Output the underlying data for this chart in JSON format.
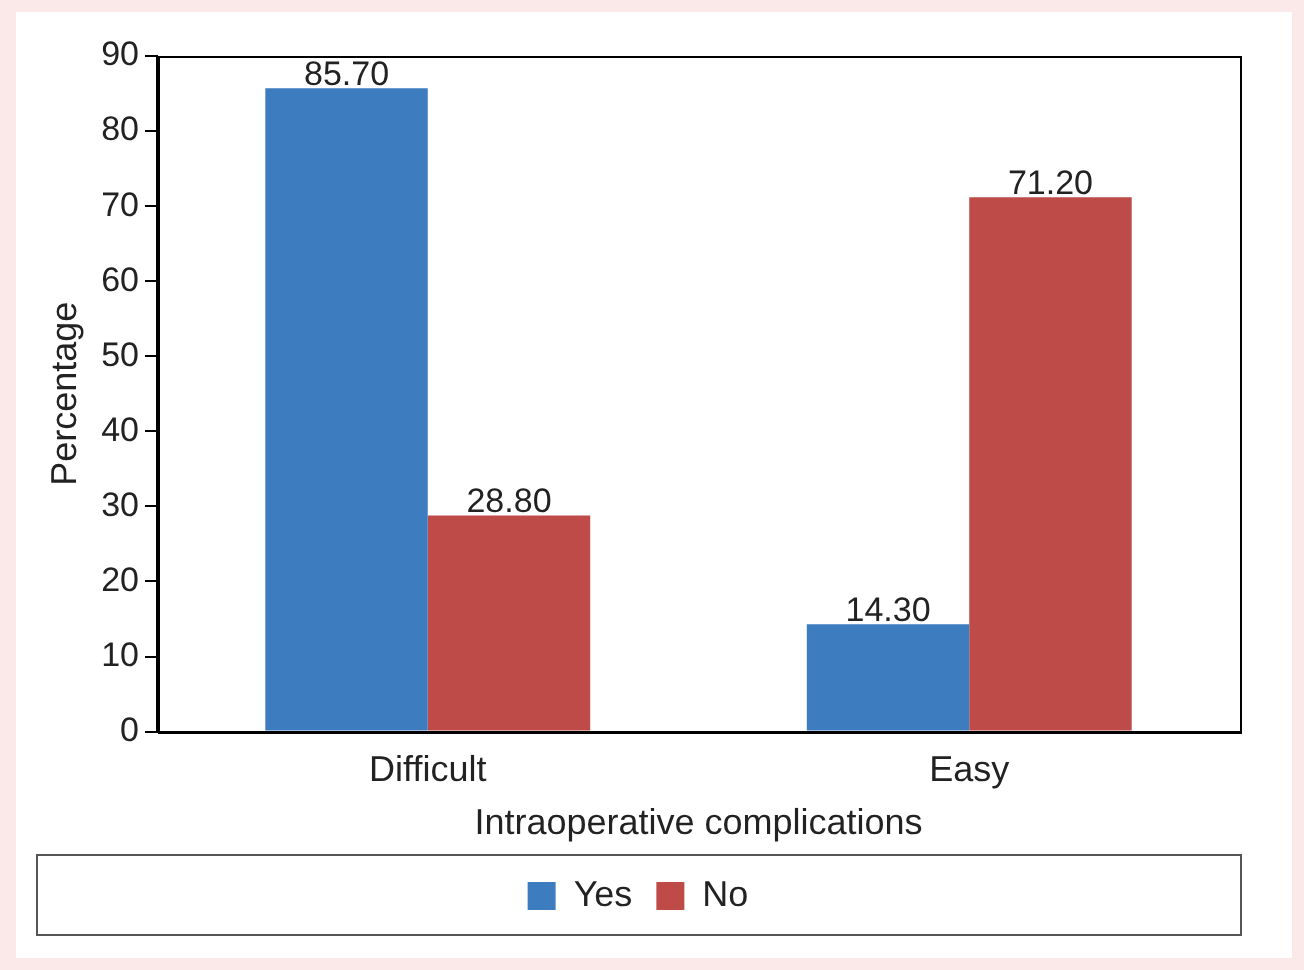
{
  "chart_data": {
    "type": "bar",
    "xlabel": "Intraoperative complications",
    "ylabel": "Percentage",
    "categories": [
      "Difficult",
      "Easy"
    ],
    "series": [
      {
        "name": "Yes",
        "color": "#3e7cc0",
        "values": [
          85.7,
          14.3
        ],
        "value_labels": [
          "85.70",
          "14.30"
        ]
      },
      {
        "name": "No",
        "color": "#be4b48",
        "values": [
          28.8,
          71.2
        ],
        "value_labels": [
          "28.80",
          "71.20"
        ]
      }
    ],
    "ylim": [
      0,
      90
    ],
    "yticks": [
      0,
      10,
      20,
      30,
      40,
      50,
      60,
      70,
      80,
      90
    ],
    "grid": false,
    "legend": "bottom"
  }
}
